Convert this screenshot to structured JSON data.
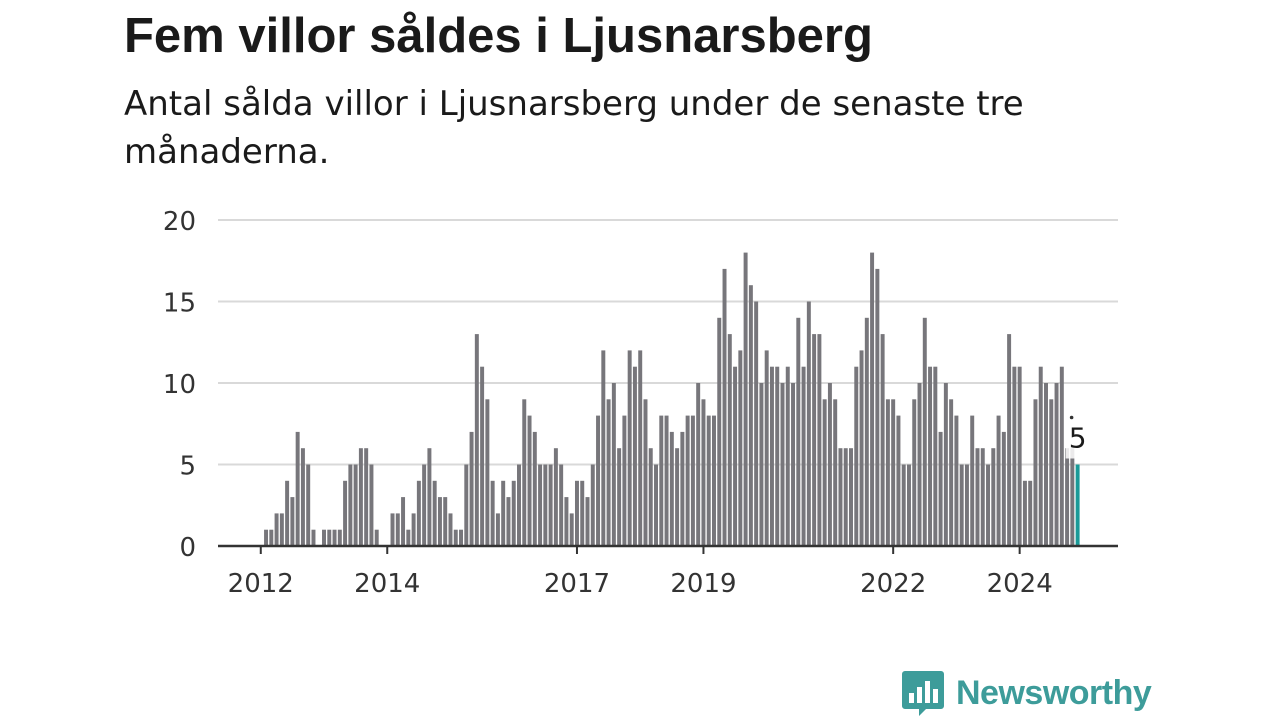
{
  "header": {
    "title": "Fem villor såldes i Ljusnarsberg",
    "subtitle": "Antal sålda villor i Ljusnarsberg under de senaste tre månaderna."
  },
  "brand": {
    "name": "Newsworthy",
    "logo_icon": "bar-chart-speech-bubble-icon",
    "color": "#3d9c9a"
  },
  "colors": {
    "bar": "#77767b",
    "highlight": "#1a9a98",
    "grid": "#d9d9d9",
    "axis": "#333333"
  },
  "chart_data": {
    "type": "bar",
    "title": "Fem villor såldes i Ljusnarsberg",
    "subtitle": "Antal sålda villor i Ljusnarsberg under de senaste tre månaderna.",
    "x_start": "2011-12",
    "x_tick_labels": [
      "2012",
      "2014",
      "2017",
      "2019",
      "2022",
      "2024"
    ],
    "y_ticks": [
      0,
      5,
      10,
      15,
      20
    ],
    "ylim": [
      0,
      20
    ],
    "grid": true,
    "values": [
      0,
      0,
      1,
      1,
      2,
      2,
      4,
      3,
      7,
      6,
      5,
      1,
      0,
      1,
      1,
      1,
      1,
      4,
      5,
      5,
      6,
      6,
      5,
      1,
      0,
      0,
      2,
      2,
      3,
      1,
      2,
      4,
      5,
      6,
      4,
      3,
      3,
      2,
      1,
      1,
      5,
      7,
      13,
      11,
      9,
      4,
      2,
      4,
      3,
      4,
      5,
      9,
      8,
      7,
      5,
      5,
      5,
      6,
      5,
      3,
      2,
      4,
      4,
      3,
      5,
      8,
      12,
      9,
      10,
      6,
      8,
      12,
      11,
      12,
      9,
      6,
      5,
      8,
      8,
      7,
      6,
      7,
      8,
      8,
      10,
      9,
      8,
      8,
      14,
      17,
      13,
      11,
      12,
      18,
      16,
      15,
      10,
      12,
      11,
      11,
      10,
      11,
      10,
      14,
      11,
      15,
      13,
      13,
      9,
      10,
      9,
      6,
      6,
      6,
      11,
      12,
      14,
      18,
      17,
      13,
      9,
      9,
      8,
      5,
      5,
      9,
      10,
      14,
      11,
      11,
      7,
      10,
      9,
      8,
      5,
      5,
      8,
      6,
      6,
      5,
      6,
      8,
      7,
      13,
      11,
      11,
      4,
      4,
      9,
      11,
      10,
      9,
      10,
      11,
      6,
      6,
      5
    ],
    "highlight_index": 156,
    "highlight_label": "5"
  }
}
